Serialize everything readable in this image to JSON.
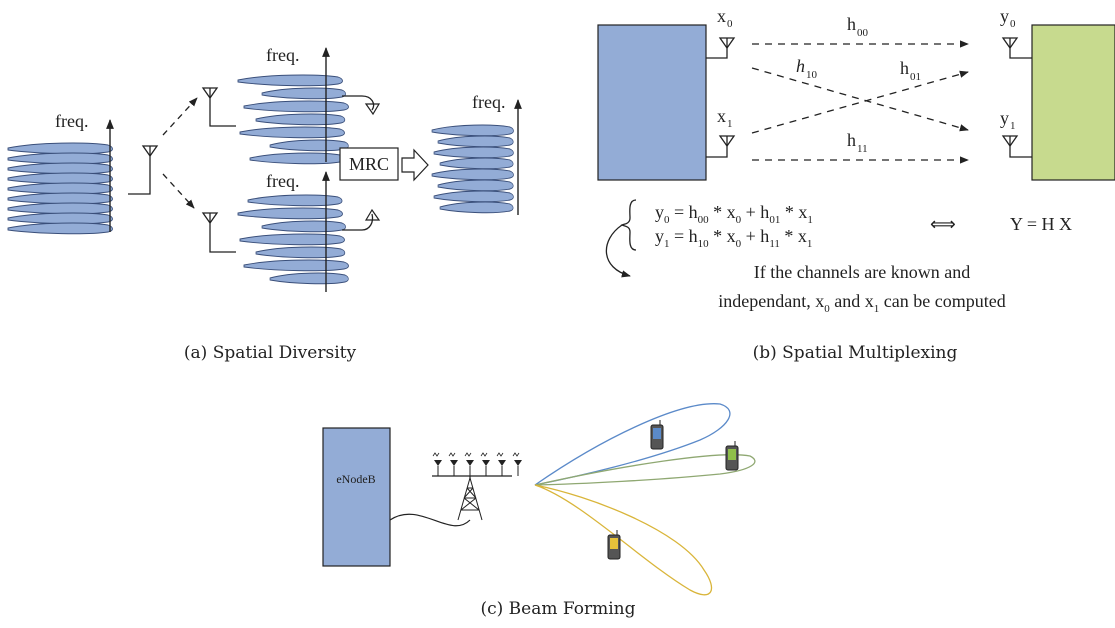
{
  "panel_a": {
    "freq_labels": [
      "freq.",
      "freq.",
      "freq.",
      "freq."
    ],
    "mrc_label": "MRC",
    "caption": "(a) Spatial Diversity"
  },
  "panel_b": {
    "x_labels": [
      "x",
      "x"
    ],
    "y_labels": [
      "y",
      "y"
    ],
    "h_labels": [
      "h",
      "h",
      "h",
      "h"
    ],
    "h_subs": [
      "00",
      "10",
      "01",
      "11"
    ],
    "eq_lines": [
      [
        "y",
        "0",
        " = h",
        "00",
        " * x",
        "0",
        " + h",
        "01",
        " * x",
        "1"
      ],
      [
        "y",
        "1",
        " = h",
        "10",
        " * x",
        "0",
        " + h",
        "11",
        " * x",
        "1"
      ]
    ],
    "equiv_symbol": "⟺",
    "matrix_eq": "Y = H X",
    "note_line1": "If the channels are known and",
    "note_line2": [
      "independant, x",
      "0",
      " and x",
      "1",
      " can be computed"
    ],
    "caption": "(b) Spatial Multiplexing",
    "colors": {
      "tx": "#93acd6",
      "rx": "#c7da8e"
    }
  },
  "panel_c": {
    "station_label": "eNodeB",
    "caption": "(c) Beam Forming",
    "colors": {
      "station": "#93acd6",
      "beam_blue": "#5b8ac9",
      "beam_green": "#8fa872",
      "beam_yellow": "#d9b53a"
    }
  }
}
